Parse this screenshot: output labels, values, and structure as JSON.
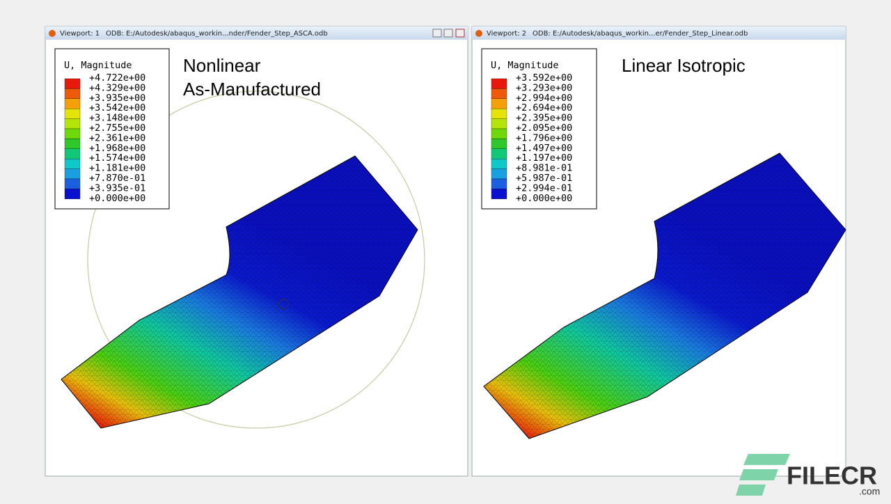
{
  "viewports": [
    {
      "name": "Viewport: 1",
      "odb": "ODB: E:/Autodesk/abaqus_workin...nder/Fender_Step_ASCA.odb",
      "legend": {
        "title": "U, Magnitude",
        "labels": [
          "+4.722e+00",
          "+4.329e+00",
          "+3.935e+00",
          "+3.542e+00",
          "+3.148e+00",
          "+2.755e+00",
          "+2.361e+00",
          "+1.968e+00",
          "+1.574e+00",
          "+1.181e+00",
          "+7.870e-01",
          "+3.935e-01",
          "+0.000e+00"
        ]
      },
      "annotation": [
        "Nonlinear",
        "As-Manufactured"
      ]
    },
    {
      "name": "Viewport: 2",
      "odb": "ODB: E:/Autodesk/abaqus_workin...er/Fender_Step_Linear.odb",
      "legend": {
        "title": "U, Magnitude",
        "labels": [
          "+3.592e+00",
          "+3.293e+00",
          "+2.994e+00",
          "+2.694e+00",
          "+2.395e+00",
          "+2.095e+00",
          "+1.796e+00",
          "+1.497e+00",
          "+1.197e+00",
          "+8.981e-01",
          "+5.987e-01",
          "+2.994e-01",
          "+0.000e+00"
        ]
      },
      "annotation": [
        "Linear Isotropic"
      ]
    }
  ],
  "watermark": {
    "brand": "FILECR",
    "domain": ".com"
  }
}
